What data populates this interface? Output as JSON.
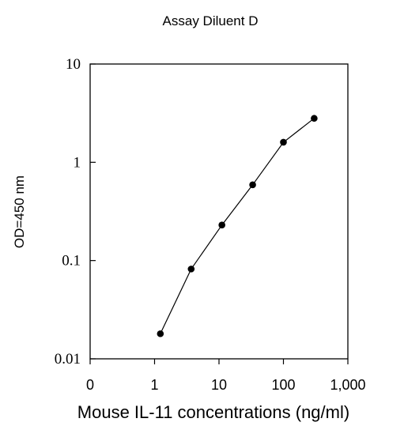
{
  "chart_data": {
    "type": "line",
    "title": "Assay Diluent D",
    "xlabel": "Mouse IL-11 concentrations (ng/ml)",
    "ylabel": "OD=450 nm",
    "x_scale": "log",
    "y_scale": "log",
    "xlim": [
      0.1,
      1000
    ],
    "ylim": [
      0.01,
      10
    ],
    "x_tick_labels": [
      "0",
      "1",
      "10",
      "100",
      "1,000"
    ],
    "y_tick_labels": [
      "0.01",
      "0.1",
      "1",
      "10"
    ],
    "grid": false,
    "series": [
      {
        "x": [
          1.23,
          3.7,
          11.1,
          33.3,
          100,
          300
        ],
        "y": [
          0.018,
          0.082,
          0.23,
          0.59,
          1.6,
          2.8
        ]
      }
    ]
  }
}
